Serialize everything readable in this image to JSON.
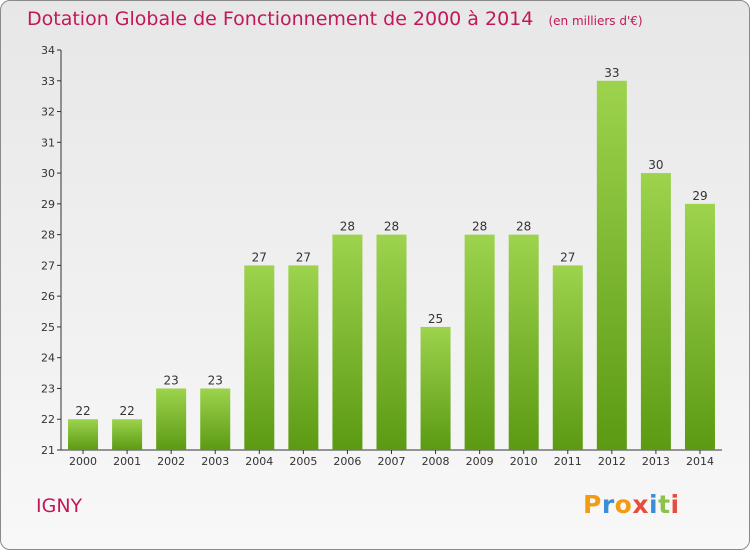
{
  "chart_data": {
    "type": "bar",
    "title": "Dotation Globale de Fonctionnement de 2000 à 2014",
    "subtitle": "(en milliers d'€)",
    "categories": [
      "2000",
      "2001",
      "2002",
      "2003",
      "2004",
      "2005",
      "2006",
      "2007",
      "2008",
      "2009",
      "2010",
      "2011",
      "2012",
      "2013",
      "2014"
    ],
    "values": [
      22,
      22,
      23,
      23,
      27,
      27,
      28,
      28,
      25,
      28,
      28,
      27,
      33,
      30,
      29
    ],
    "xlabel": "",
    "ylabel": "",
    "ylim": [
      21,
      34
    ],
    "yticks": [
      21,
      22,
      23,
      24,
      25,
      26,
      27,
      28,
      29,
      30,
      31,
      32,
      33,
      34
    ],
    "grid": false,
    "colors": {
      "bar_top": "#9dd34d",
      "bar_bottom": "#5c9a14",
      "title": "#c2185b"
    }
  },
  "commune": "IGNY",
  "brand": {
    "letters": [
      "P",
      "r",
      "o",
      "x",
      "i",
      "t",
      "i"
    ],
    "colors": [
      "#f39c12",
      "#3b8ed6",
      "#f39c12",
      "#e74c3c",
      "#3b8ed6",
      "#8bc34a",
      "#e74c3c"
    ]
  }
}
